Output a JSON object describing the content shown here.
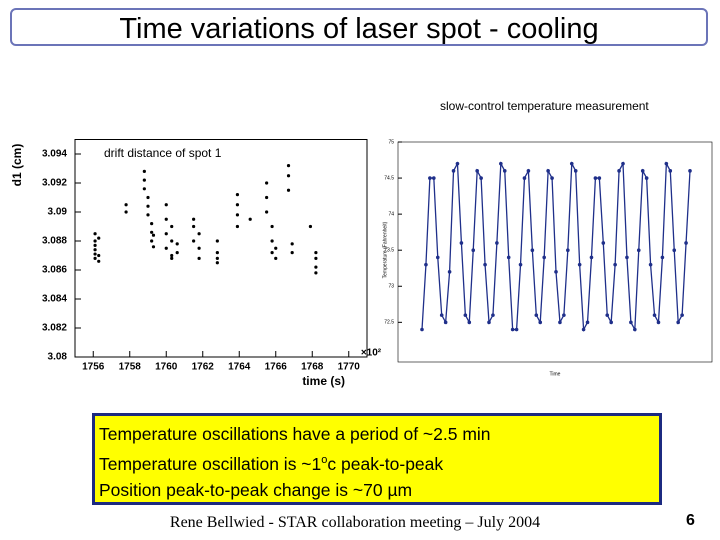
{
  "slide": {
    "title": "Time variations of laser spot - cooling",
    "right_caption": "slow-control temperature measurement",
    "bullets": [
      "Temperature oscillations have a period of ~2.5 min",
      {
        "before": "Temperature oscillation is ~1",
        "sup": "o",
        "after": "c peak-to-peak"
      },
      "Position peak-to-peak change is ~70 µm"
    ],
    "footer": "Rene Bellwied - STAR collaboration meeting – July 2004",
    "page": "6"
  },
  "chart_data": [
    {
      "type": "scatter",
      "title": "drift distance of spot 1",
      "x_label": "time (s)",
      "y_label": "d1 (cm)",
      "x_multiplier": "×10²",
      "color": "#000000",
      "x": [
        1756.1,
        1756.1,
        1756.1,
        1756.1,
        1756.1,
        1756.1,
        1756.3,
        1756.3,
        1756.3,
        1757.8,
        1757.8,
        1758.8,
        1758.8,
        1758.8,
        1759.0,
        1759.0,
        1759.0,
        1759.2,
        1759.2,
        1759.2,
        1759.3,
        1759.3,
        1760.0,
        1760.0,
        1760.0,
        1760.0,
        1760.3,
        1760.3,
        1760.3,
        1760.3,
        1760.6,
        1760.6,
        1761.5,
        1761.5,
        1761.5,
        1761.8,
        1761.8,
        1761.8,
        1762.8,
        1762.8,
        1762.8,
        1762.8,
        1763.9,
        1763.9,
        1763.9,
        1763.9,
        1764.6,
        1765.5,
        1765.5,
        1765.5,
        1765.8,
        1765.8,
        1765.8,
        1766.0,
        1766.0,
        1766.7,
        1766.7,
        1766.7,
        1766.9,
        1766.9,
        1767.9,
        1768.2,
        1768.2,
        1768.2,
        1768.2
      ],
      "values": [
        3.0868,
        3.0874,
        3.088,
        3.0885,
        3.0871,
        3.0877,
        3.0866,
        3.0882,
        3.087,
        3.0905,
        3.09,
        3.0928,
        3.0922,
        3.0916,
        3.091,
        3.0904,
        3.0898,
        3.0892,
        3.0886,
        3.088,
        3.0876,
        3.0884,
        3.0895,
        3.0885,
        3.0875,
        3.0905,
        3.087,
        3.088,
        3.0868,
        3.089,
        3.0872,
        3.0878,
        3.089,
        3.0895,
        3.088,
        3.0875,
        3.0885,
        3.0868,
        3.0865,
        3.0872,
        3.088,
        3.0868,
        3.0905,
        3.0898,
        3.089,
        3.0912,
        3.0895,
        3.092,
        3.091,
        3.09,
        3.089,
        3.088,
        3.0872,
        3.0875,
        3.0868,
        3.0932,
        3.0925,
        3.0915,
        3.0878,
        3.0872,
        3.089,
        3.0868,
        3.0862,
        3.0858,
        3.0872
      ],
      "xlim": [
        1755,
        1771
      ],
      "xticks": [
        1756,
        1758,
        1760,
        1762,
        1764,
        1766,
        1768,
        1770
      ],
      "ylim": [
        3.08,
        3.095
      ],
      "yticks": [
        3.08,
        3.082,
        3.084,
        3.086,
        3.088,
        3.09,
        3.092,
        3.094
      ]
    },
    {
      "type": "line",
      "x_label": "Time",
      "y_label": "Temperature (Fahrenheit)",
      "color": "#1f2f8a",
      "values": [
        72.4,
        73.3,
        74.5,
        74.5,
        73.4,
        72.6,
        72.5,
        73.2,
        74.6,
        74.7,
        73.6,
        72.6,
        72.5,
        73.5,
        74.6,
        74.5,
        73.3,
        72.5,
        72.6,
        73.6,
        74.7,
        74.6,
        73.4,
        72.4,
        72.4,
        73.3,
        74.5,
        74.6,
        73.5,
        72.6,
        72.5,
        73.4,
        74.6,
        74.5,
        73.2,
        72.5,
        72.6,
        73.5,
        74.7,
        74.6,
        73.3,
        72.4,
        72.5,
        73.4,
        74.5,
        74.5,
        73.6,
        72.6,
        72.5,
        73.3,
        74.6,
        74.7,
        73.4,
        72.5,
        72.4,
        73.5,
        74.6,
        74.5,
        73.3,
        72.6,
        72.5,
        73.4,
        74.7,
        74.6,
        73.5,
        72.5,
        72.6,
        73.6,
        74.6
      ],
      "ylim": [
        71.95,
        75
      ],
      "yticks": [
        72.5,
        73,
        73.5,
        74,
        74.5,
        75
      ]
    }
  ]
}
